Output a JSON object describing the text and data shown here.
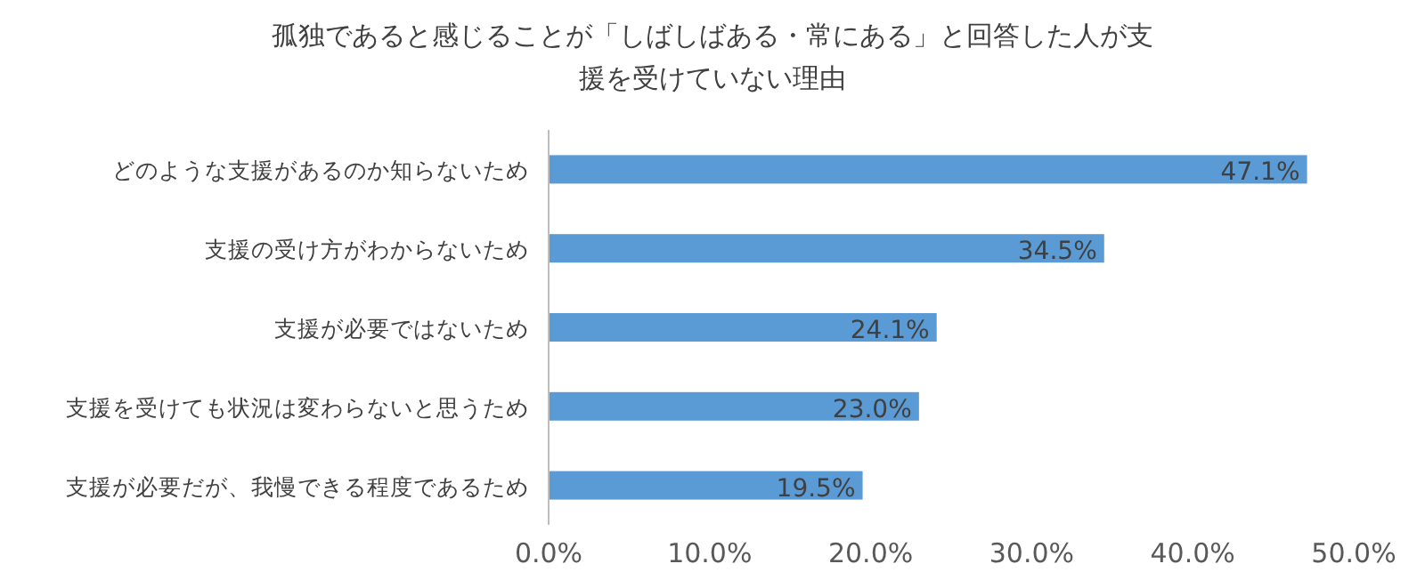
{
  "chart_data": {
    "type": "bar",
    "orientation": "horizontal",
    "title": "孤独であると感じることが「しばしばある・常にある」と回答した人が支援を受けていない理由",
    "categories": [
      "どのような支援があるのか知らないため",
      "支援の受け方がわからないため",
      "支援が必要ではないため",
      "支援を受けても状況は変わらないと思うため",
      "支援が必要だが、我慢できる程度であるため"
    ],
    "values": [
      47.1,
      34.5,
      24.1,
      23.0,
      19.5
    ],
    "value_labels": [
      "47.1%",
      "34.5%",
      "24.1%",
      "23.0%",
      "19.5%"
    ],
    "color": "#5b9bd5",
    "xlim": [
      0,
      50
    ],
    "xticks": [
      {
        "value": 0,
        "label": "0.0%"
      },
      {
        "value": 10,
        "label": "10.0%"
      },
      {
        "value": 20,
        "label": "20.0%"
      },
      {
        "value": 30,
        "label": "30.0%"
      },
      {
        "value": 40,
        "label": "40.0%"
      },
      {
        "value": 50,
        "label": "50.0%"
      }
    ],
    "grid": false
  }
}
